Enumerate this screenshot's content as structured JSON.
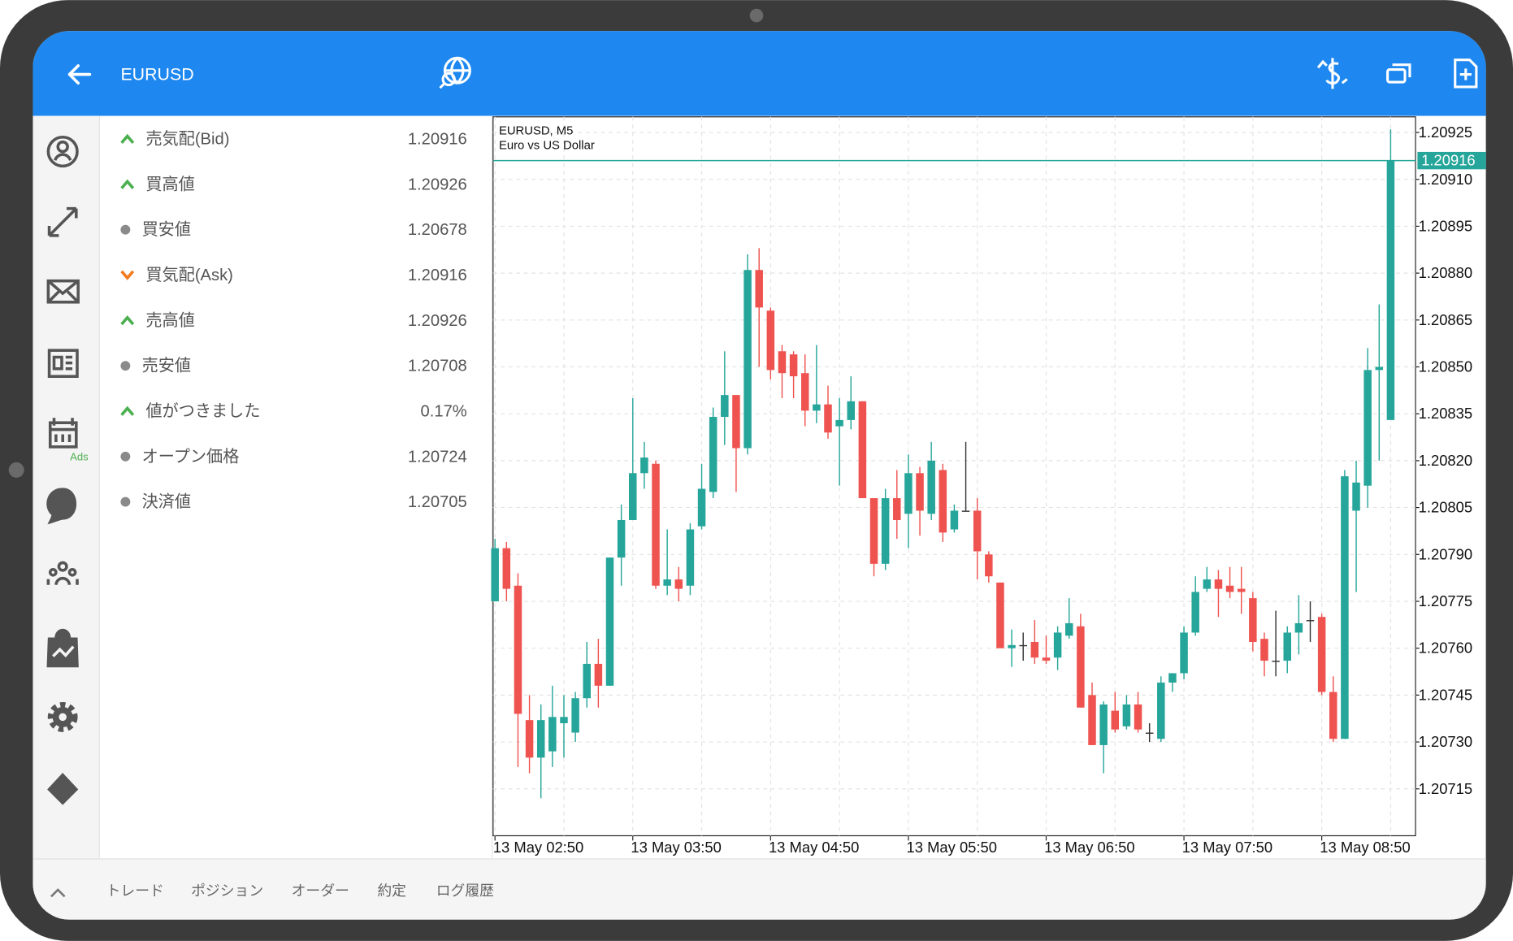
{
  "header": {
    "symbol": "EURUSD"
  },
  "sidebar": {
    "ads_badge": "Ads"
  },
  "quotes": [
    {
      "label": "売気配(Bid)",
      "value": "1.20916",
      "trend": "up"
    },
    {
      "label": "買高値",
      "value": "1.20926",
      "trend": "up"
    },
    {
      "label": "買安値",
      "value": "1.20678",
      "trend": "none"
    },
    {
      "label": "買気配(Ask)",
      "value": "1.20916",
      "trend": "down"
    },
    {
      "label": "売高値",
      "value": "1.20926",
      "trend": "up"
    },
    {
      "label": "売安値",
      "value": "1.20708",
      "trend": "none"
    },
    {
      "label": "値がつきました",
      "value": "0.17%",
      "trend": "up"
    },
    {
      "label": "オープン価格",
      "value": "1.20724",
      "trend": "none"
    },
    {
      "label": "決済値",
      "value": "1.20705",
      "trend": "none"
    }
  ],
  "chart_data": {
    "type": "candlestick",
    "title": "EURUSD, M5",
    "subtitle": "Euro vs US Dollar",
    "up_color": "#26a69a",
    "down_color": "#ef5350",
    "flat_color": "#333333",
    "categories": [
      "13 May 02:50",
      null,
      null,
      null,
      null,
      null,
      null,
      null,
      null,
      null,
      null,
      null,
      "13 May 03:50",
      null,
      null,
      null,
      null,
      null,
      null,
      null,
      null,
      null,
      null,
      null,
      "13 May 04:50",
      null,
      null,
      null,
      null,
      null,
      null,
      null,
      null,
      null,
      null,
      null,
      "13 May 05:50",
      null,
      null,
      null,
      null,
      null,
      null,
      null,
      null,
      null,
      null,
      null,
      "13 May 06:50",
      null,
      null,
      null,
      null,
      null,
      null,
      null,
      null,
      null,
      null,
      null,
      "13 May 07:50",
      null,
      null,
      null,
      null,
      null,
      null,
      null,
      null,
      null,
      null,
      null,
      "13 May 08:50",
      null,
      null,
      null,
      null,
      null,
      null
    ],
    "open": [
      1.20775,
      1.20792,
      1.2078,
      1.20737,
      1.20725,
      1.20727,
      1.20736,
      1.20733,
      1.20744,
      1.20755,
      1.20748,
      1.20789,
      1.20801,
      1.20816,
      1.20819,
      1.2078,
      1.20782,
      1.2078,
      1.20799,
      1.2081,
      1.20834,
      1.20841,
      1.20824,
      1.20881,
      1.20868,
      1.20855,
      1.20854,
      1.20848,
      1.20836,
      1.20838,
      1.20831,
      1.20833,
      1.20839,
      1.20808,
      1.20787,
      1.20808,
      1.20803,
      1.20816,
      1.20803,
      1.20817,
      1.20798,
      1.20804,
      1.20804,
      1.2079,
      1.20781,
      1.2076,
      1.20761,
      1.20762,
      1.20757,
      1.20757,
      1.20764,
      1.20767,
      1.20745,
      1.20729,
      1.2074,
      1.20735,
      1.20742,
      1.20733,
      1.20731,
      1.20749,
      1.20752,
      1.20765,
      1.20779,
      1.20782,
      1.2078,
      1.20779,
      1.20776,
      1.20763,
      1.20756,
      1.20756,
      1.20765,
      1.20769,
      1.2077,
      1.20746,
      1.20731,
      1.20804,
      1.20812,
      1.20849,
      1.20833
    ],
    "high": [
      1.20795,
      1.20794,
      1.20784,
      1.20745,
      1.20742,
      1.20748,
      1.20745,
      1.20746,
      1.20762,
      1.20763,
      1.20789,
      1.20806,
      1.2084,
      1.20826,
      1.2082,
      1.20798,
      1.20786,
      1.208,
      1.20819,
      1.20837,
      1.20855,
      1.20841,
      1.20886,
      1.20888,
      1.20869,
      1.20857,
      1.20855,
      1.20854,
      1.20857,
      1.20844,
      1.2084,
      1.20847,
      1.20839,
      1.20808,
      1.20811,
      1.20817,
      1.20822,
      1.20818,
      1.20826,
      1.20819,
      1.20806,
      1.20826,
      1.20808,
      1.20791,
      1.20781,
      1.20766,
      1.20765,
      1.20769,
      1.20764,
      1.20767,
      1.20776,
      1.20771,
      1.20749,
      1.20743,
      1.20746,
      1.20745,
      1.20746,
      1.20736,
      1.20751,
      1.20752,
      1.20767,
      1.20783,
      1.20786,
      1.20785,
      1.20786,
      1.20786,
      1.20778,
      1.20765,
      1.20772,
      1.20767,
      1.20777,
      1.20775,
      1.20771,
      1.20751,
      1.20817,
      1.2082,
      1.20856,
      1.2087,
      1.20926
    ],
    "low": [
      1.20775,
      1.20775,
      1.20722,
      1.2072,
      1.20712,
      1.20722,
      1.20725,
      1.2073,
      1.20741,
      1.20741,
      1.20748,
      1.2078,
      1.20801,
      1.20811,
      1.20779,
      1.20777,
      1.20775,
      1.20777,
      1.20798,
      1.20808,
      1.20825,
      1.2081,
      1.20822,
      1.2085,
      1.20846,
      1.2084,
      1.2084,
      1.20831,
      1.20832,
      1.20827,
      1.20812,
      1.2083,
      1.20808,
      1.20783,
      1.20785,
      1.20795,
      1.20792,
      1.20796,
      1.20801,
      1.20794,
      1.20797,
      1.20804,
      1.20782,
      1.20781,
      1.2076,
      1.20754,
      1.20756,
      1.20755,
      1.20755,
      1.20753,
      1.20763,
      1.20741,
      1.20729,
      1.2072,
      1.20733,
      1.20734,
      1.20733,
      1.2073,
      1.2073,
      1.20746,
      1.2075,
      1.20764,
      1.20778,
      1.2077,
      1.20776,
      1.20771,
      1.20759,
      1.20751,
      1.20751,
      1.20752,
      1.20758,
      1.20762,
      1.20745,
      1.2073,
      1.20731,
      1.20778,
      1.20805,
      1.2082,
      1.20834
    ],
    "close": [
      1.20792,
      1.20779,
      1.20739,
      1.20725,
      1.20737,
      1.20738,
      1.20738,
      1.20744,
      1.20755,
      1.20748,
      1.20789,
      1.20801,
      1.20816,
      1.20821,
      1.2078,
      1.20782,
      1.20779,
      1.20798,
      1.20811,
      1.20834,
      1.20841,
      1.20824,
      1.20881,
      1.20869,
      1.20849,
      1.20848,
      1.20847,
      1.20836,
      1.20838,
      1.20829,
      1.20833,
      1.20839,
      1.20808,
      1.20787,
      1.20808,
      1.20801,
      1.20816,
      1.20804,
      1.2082,
      1.20797,
      1.20804,
      1.20804,
      1.20791,
      1.20783,
      1.2076,
      1.20761,
      1.20761,
      1.20757,
      1.20756,
      1.20765,
      1.20768,
      1.20741,
      1.20729,
      1.20742,
      1.20734,
      1.20742,
      1.20734,
      1.20733,
      1.20749,
      1.20752,
      1.20765,
      1.20778,
      1.20782,
      1.20779,
      1.20778,
      1.20778,
      1.20762,
      1.20756,
      1.20756,
      1.20765,
      1.20768,
      1.20769,
      1.20746,
      1.20731,
      1.20815,
      1.20813,
      1.20849,
      1.2085,
      1.20916
    ],
    "current_price": 1.20916,
    "current_color": "#26a69a",
    "ylim": [
      1.207,
      1.2093
    ],
    "yticks": [
      1.20925,
      {
        "value": 1.2091,
        "label": "1.20910"
      },
      1.20895,
      {
        "value": 1.2088,
        "label": "1.20880"
      },
      1.20865,
      {
        "value": 1.2085,
        "label": "1.20850"
      },
      1.20835,
      {
        "value": 1.2082,
        "label": "1.20820"
      },
      1.20805,
      {
        "value": 1.2079,
        "label": "1.20790"
      },
      1.20775,
      {
        "value": 1.2076,
        "label": "1.20760"
      },
      1.20745,
      {
        "value": 1.2073,
        "label": "1.20730"
      },
      1.20715
    ],
    "grid": true
  },
  "tabs": {
    "items": [
      "トレード",
      "ポジション",
      "オーダー",
      "約定",
      "ログ履歴"
    ],
    "active": 0
  }
}
